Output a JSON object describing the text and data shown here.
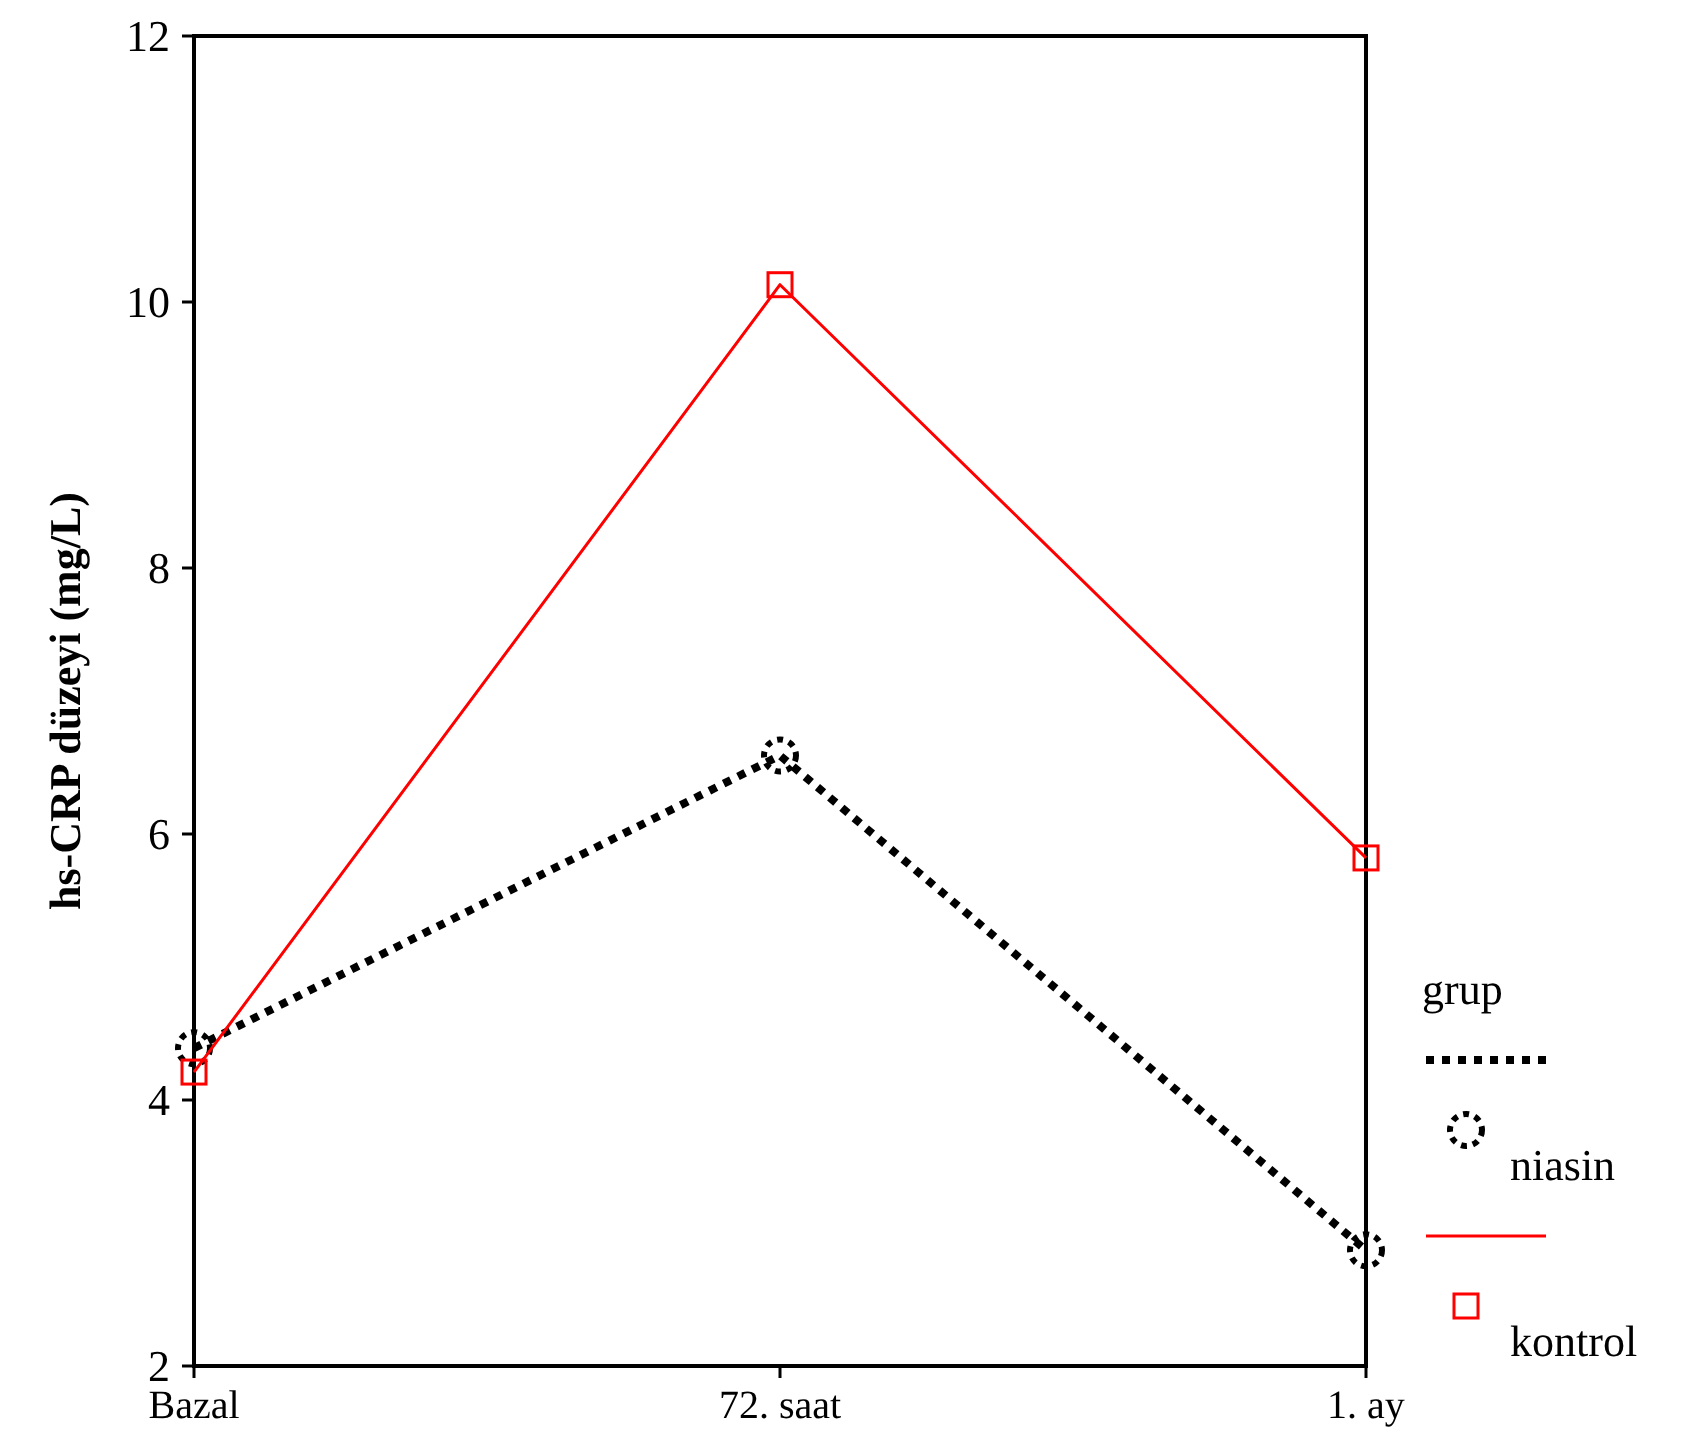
{
  "chart_data": {
    "type": "line",
    "ylabel": "hs-CRP  düzeyi (mg/L)",
    "legend_title": "grup",
    "categories": [
      "Bazal",
      "72. saat",
      "1. ay"
    ],
    "series": [
      {
        "name": "niasin",
        "color": "#000000",
        "values": [
          4.39,
          6.59,
          2.87
        ],
        "marker": "circle",
        "line_style": "dotted"
      },
      {
        "name": "kontrol",
        "color": "#ff0000",
        "values": [
          4.21,
          10.13,
          5.82
        ],
        "marker": "square",
        "line_style": "solid"
      }
    ],
    "ylim": [
      2,
      12
    ],
    "yticks": [
      2,
      4,
      6,
      8,
      10,
      12
    ],
    "grid": false,
    "legend": "right"
  }
}
